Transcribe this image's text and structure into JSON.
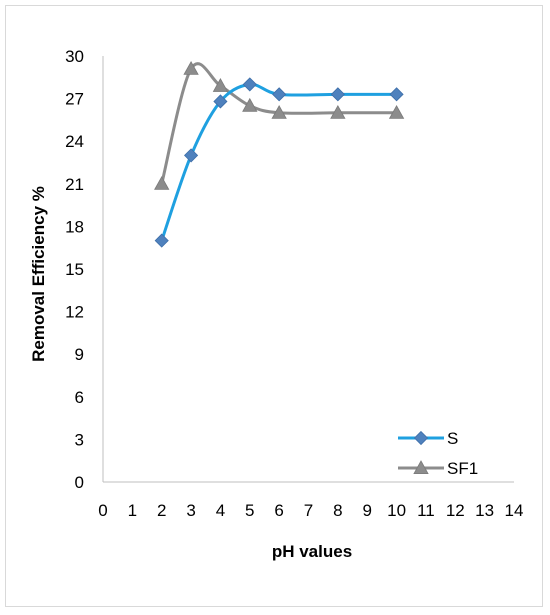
{
  "chart_data": {
    "type": "line",
    "title": "",
    "xlabel": "pH values",
    "ylabel": "Removal  Efficiency  %",
    "xlim": [
      0,
      14
    ],
    "ylim": [
      0,
      30
    ],
    "x_ticks": [
      "0",
      "1",
      "2",
      "3",
      "4",
      "5",
      "6",
      "7",
      "8",
      "9",
      "10",
      "11",
      "12",
      "13",
      "14"
    ],
    "y_ticks": [
      "0",
      "3",
      "6",
      "9",
      "12",
      "15",
      "18",
      "21",
      "24",
      "27",
      "30"
    ],
    "grid": false,
    "smooth": true,
    "legend_position": "bottom-right",
    "series": [
      {
        "name": "S",
        "marker": "diamond",
        "color": "#1fa0e0",
        "x": [
          2,
          3,
          4,
          5,
          6,
          8,
          10
        ],
        "y": [
          17,
          23,
          26.8,
          28,
          27.3,
          27.3,
          27.3
        ]
      },
      {
        "name": "SF1",
        "marker": "triangle",
        "color": "#8c8c8c",
        "x": [
          2,
          3,
          4,
          5,
          6,
          8,
          10
        ],
        "y": [
          21,
          29.1,
          27.9,
          26.5,
          26,
          26,
          26
        ]
      }
    ]
  }
}
